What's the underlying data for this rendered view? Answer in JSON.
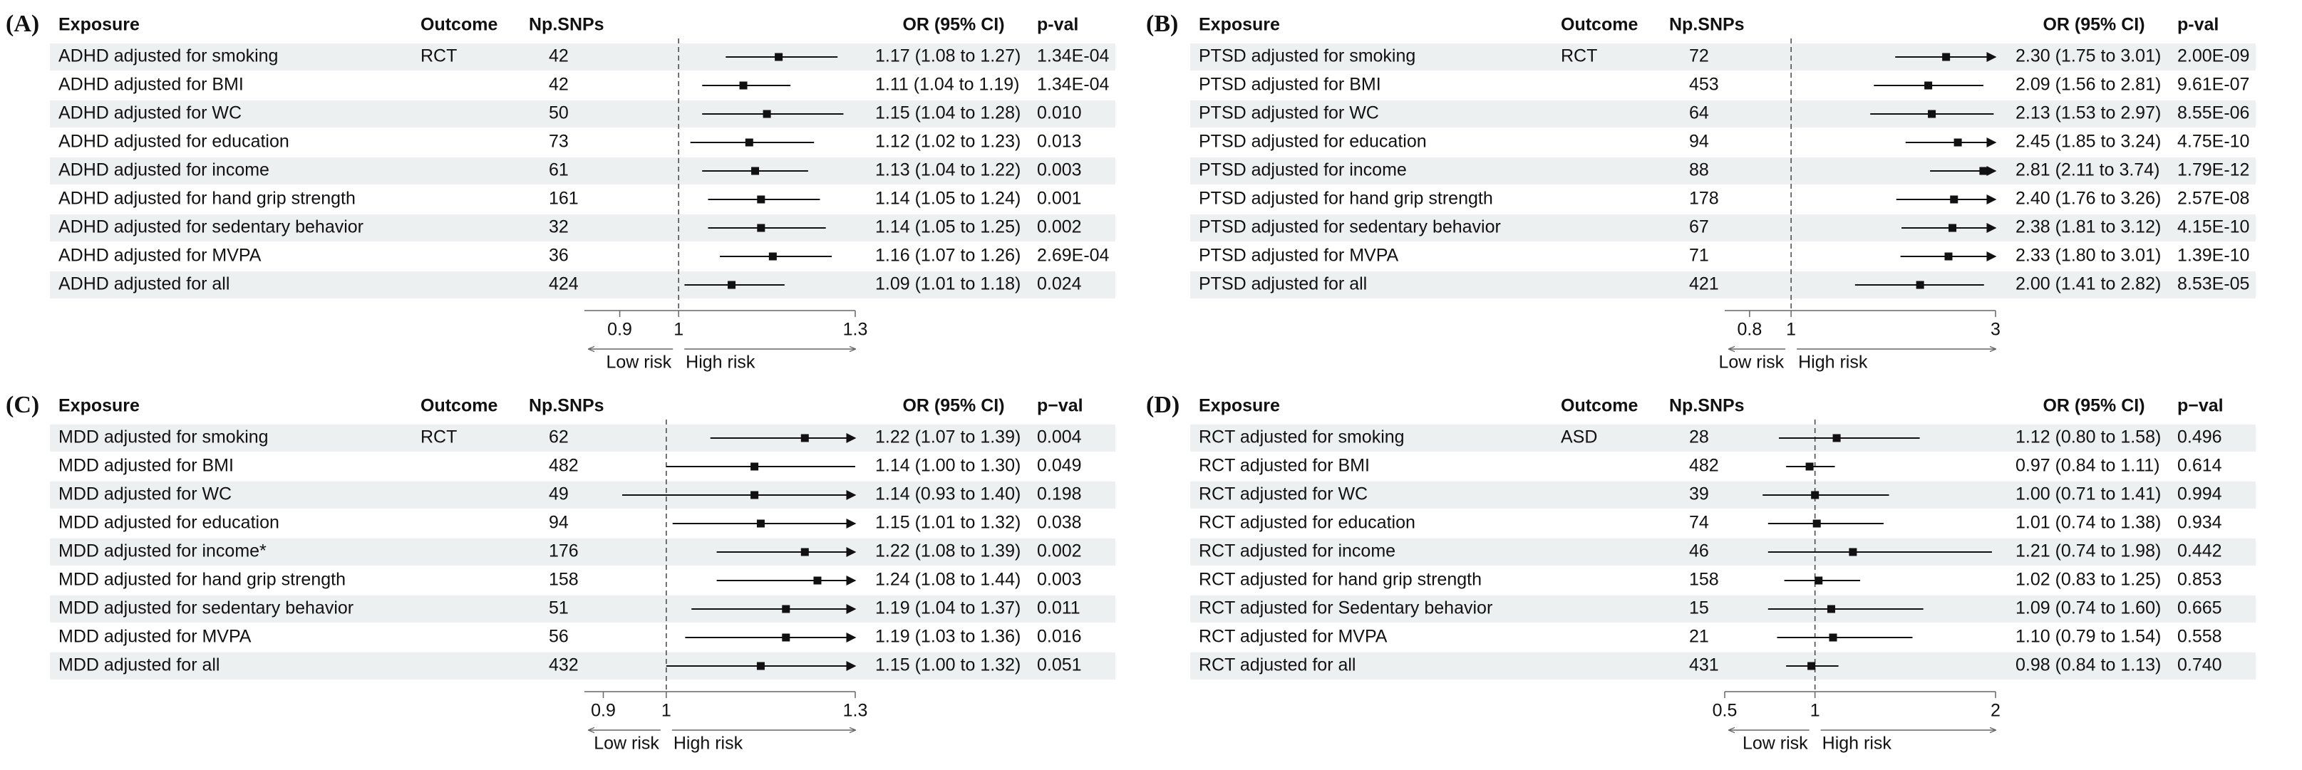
{
  "chart_data": [
    {
      "type": "forest",
      "panel_label": "(A)",
      "headers": {
        "exposure": "Exposure",
        "outcome": "Outcome",
        "snps": "Np.SNPs",
        "or": "OR (95% CI)",
        "pval": "p-val"
      },
      "outcome": "RCT",
      "exposures": [
        "ADHD adjusted for smoking",
        "ADHD adjusted for BMI",
        "ADHD adjusted for WC",
        "ADHD adjusted for education",
        "ADHD adjusted for income",
        "ADHD adjusted for hand grip strength",
        "ADHD adjusted for sedentary behavior",
        "ADHD adjusted for MVPA",
        "ADHD adjusted for all"
      ],
      "snps": [
        42,
        42,
        50,
        73,
        61,
        161,
        32,
        36,
        424
      ],
      "values": [
        1.17,
        1.11,
        1.15,
        1.12,
        1.13,
        1.14,
        1.14,
        1.16,
        1.09
      ],
      "lower": [
        1.08,
        1.04,
        1.04,
        1.02,
        1.04,
        1.05,
        1.05,
        1.07,
        1.01
      ],
      "upper": [
        1.27,
        1.19,
        1.28,
        1.23,
        1.22,
        1.24,
        1.25,
        1.26,
        1.18
      ],
      "value_labels": [
        "1.17 (1.08 to 1.27)",
        "1.11 (1.04 to 1.19)",
        "1.15 (1.04 to 1.28)",
        "1.12 (1.02 to 1.23)",
        "1.13 (1.04 to 1.22)",
        "1.14 (1.05 to 1.24)",
        "1.14 (1.05 to 1.25)",
        "1.16 (1.07 to 1.26)",
        "1.09 (1.01 to 1.18)"
      ],
      "pvals": [
        "1.34E-04",
        "1.34E-04",
        "0.010",
        "0.013",
        "0.003",
        "0.001",
        "0.002",
        "2.69E-04",
        "0.024"
      ],
      "xlim": [
        0.84,
        1.3
      ],
      "xticks": [
        0.9,
        1,
        1.3
      ],
      "log_scale": false,
      "reference_line": 1,
      "risk_labels": [
        "Low risk",
        "High risk"
      ]
    },
    {
      "type": "forest",
      "panel_label": "(B)",
      "headers": {
        "exposure": "Exposure",
        "outcome": "Outcome",
        "snps": "Np.SNPs",
        "or": "OR (95% CI)",
        "pval": "p-val"
      },
      "outcome": "RCT",
      "exposures": [
        "PTSD adjusted for smoking",
        "PTSD adjusted for BMI",
        "PTSD adjusted for WC",
        "PTSD adjusted for education",
        "PTSD adjusted for income",
        "PTSD adjusted for hand grip strength",
        "PTSD adjusted for sedentary behavior",
        "PTSD adjusted for MVPA",
        "PTSD adjusted for all"
      ],
      "snps": [
        72,
        453,
        64,
        94,
        88,
        178,
        67,
        71,
        421
      ],
      "values": [
        2.3,
        2.09,
        2.13,
        2.45,
        2.81,
        2.4,
        2.38,
        2.33,
        2.0
      ],
      "lower": [
        1.75,
        1.56,
        1.53,
        1.85,
        2.11,
        1.76,
        1.81,
        1.8,
        1.41
      ],
      "upper": [
        3.01,
        2.81,
        2.97,
        3.24,
        3.74,
        3.26,
        3.12,
        3.01,
        2.82
      ],
      "value_labels": [
        "2.30 (1.75 to 3.01)",
        "2.09 (1.56 to 2.81)",
        "2.13 (1.53 to 2.97)",
        "2.45 (1.85 to 3.24)",
        "2.81 (2.11 to 3.74)",
        "2.40 (1.76 to 3.26)",
        "2.38 (1.81 to 3.12)",
        "2.33 (1.80 to 3.01)",
        "2.00 (1.41 to 2.82)"
      ],
      "pvals": [
        "2.00E-09",
        "9.61E-07",
        "8.55E-06",
        "4.75E-10",
        "1.79E-12",
        "2.57E-08",
        "4.15E-10",
        "1.39E-10",
        "8.53E-05"
      ],
      "xlim": [
        0.7,
        3
      ],
      "xticks": [
        0.8,
        1,
        3
      ],
      "log_scale": true,
      "reference_line": 1,
      "risk_labels": [
        "Low risk",
        "High risk"
      ]
    },
    {
      "type": "forest",
      "panel_label": "(C)",
      "headers": {
        "exposure": "Exposure",
        "outcome": "Outcome",
        "snps": "Np.SNPs",
        "or": "OR (95% CI)",
        "pval": "p−val"
      },
      "outcome": "RCT",
      "exposures": [
        "MDD adjusted for smoking",
        "MDD adjusted for BMI",
        "MDD adjusted for WC",
        "MDD adjusted for education",
        "MDD adjusted for income*",
        "MDD adjusted for hand grip strength",
        "MDD adjusted for sedentary behavior",
        "MDD adjusted for MVPA",
        "MDD adjusted for all"
      ],
      "snps": [
        62,
        482,
        49,
        94,
        176,
        158,
        51,
        56,
        432
      ],
      "values": [
        1.22,
        1.14,
        1.14,
        1.15,
        1.22,
        1.24,
        1.19,
        1.19,
        1.15
      ],
      "lower": [
        1.07,
        1.0,
        0.93,
        1.01,
        1.08,
        1.08,
        1.04,
        1.03,
        1.0
      ],
      "upper": [
        1.39,
        1.3,
        1.4,
        1.32,
        1.39,
        1.44,
        1.37,
        1.36,
        1.32
      ],
      "value_labels": [
        "1.22 (1.07 to 1.39)",
        "1.14 (1.00 to 1.30)",
        "1.14 (0.93 to 1.40)",
        "1.15 (1.01 to 1.32)",
        "1.22 (1.08 to 1.39)",
        "1.24 (1.08 to 1.44)",
        "1.19 (1.04 to 1.37)",
        "1.19 (1.03 to 1.36)",
        "1.15 (1.00 to 1.32)"
      ],
      "pvals": [
        "0.004",
        "0.049",
        "0.198",
        "0.038",
        "0.002",
        "0.003",
        "0.011",
        "0.016",
        "0.051"
      ],
      "xlim": [
        0.87,
        1.3
      ],
      "xticks": [
        0.9,
        1,
        1.3
      ],
      "log_scale": false,
      "reference_line": 1,
      "risk_labels": [
        "Low risk",
        "High risk"
      ]
    },
    {
      "type": "forest",
      "panel_label": "(D)",
      "headers": {
        "exposure": "Exposure",
        "outcome": "Outcome",
        "snps": "Np.SNPs",
        "or": "OR (95% CI)",
        "pval": "p−val"
      },
      "outcome": "ASD",
      "exposures": [
        "RCT adjusted for smoking",
        "RCT adjusted for BMI",
        "RCT adjusted for WC",
        "RCT adjusted for education",
        "RCT adjusted for income",
        "RCT adjusted for hand grip strength",
        "RCT adjusted for Sedentary behavior",
        "RCT adjusted for MVPA",
        "RCT adjusted for all"
      ],
      "snps": [
        28,
        482,
        39,
        74,
        46,
        158,
        15,
        21,
        431
      ],
      "values": [
        1.12,
        0.97,
        1.0,
        1.01,
        1.21,
        1.02,
        1.09,
        1.1,
        0.98
      ],
      "lower": [
        0.8,
        0.84,
        0.71,
        0.74,
        0.74,
        0.83,
        0.74,
        0.79,
        0.84
      ],
      "upper": [
        1.58,
        1.11,
        1.41,
        1.38,
        1.98,
        1.25,
        1.6,
        1.54,
        1.13
      ],
      "value_labels": [
        "1.12 (0.80 to 1.58)",
        "0.97 (0.84 to 1.11)",
        "1.00 (0.71 to 1.41)",
        "1.01 (0.74 to 1.38)",
        "1.21 (0.74 to 1.98)",
        "1.02 (0.83 to 1.25)",
        "1.09 (0.74 to 1.60)",
        "1.10 (0.79 to 1.54)",
        "0.98 (0.84 to 1.13)"
      ],
      "pvals": [
        "0.496",
        "0.614",
        "0.994",
        "0.934",
        "0.442",
        "0.853",
        "0.665",
        "0.558",
        "0.740"
      ],
      "xlim": [
        0.5,
        2
      ],
      "xticks": [
        0.5,
        1,
        2
      ],
      "log_scale": false,
      "reference_line": 1,
      "risk_labels": [
        "Low risk",
        "High risk"
      ]
    }
  ]
}
